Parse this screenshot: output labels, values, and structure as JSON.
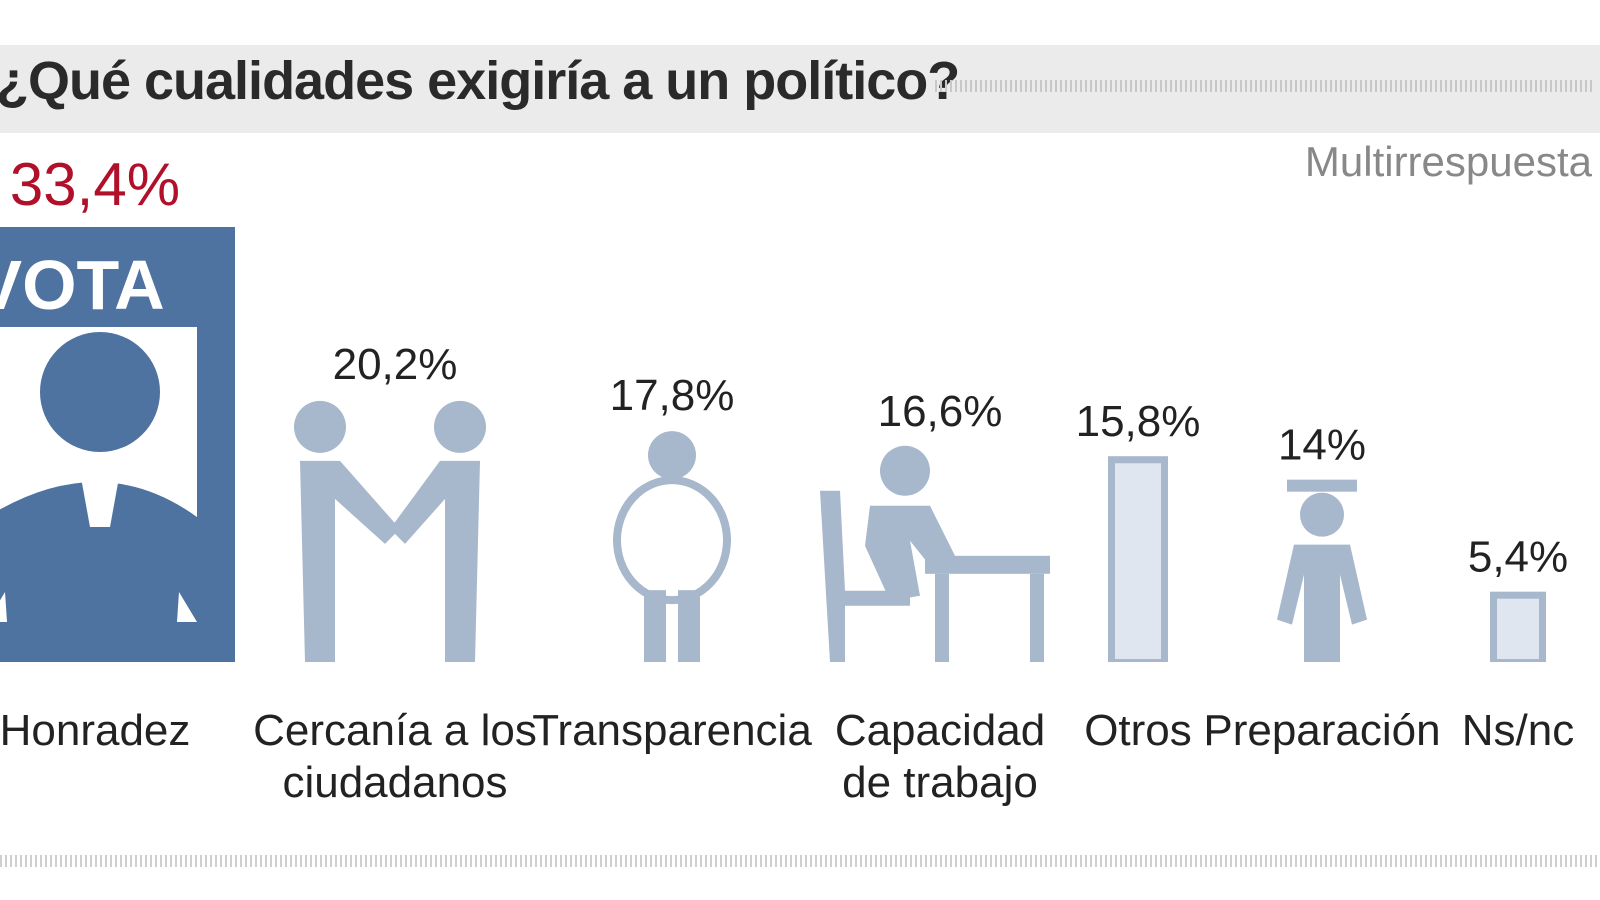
{
  "title": "¿Qué cualidades exigiría a un político?",
  "note": "Multirrespuesta",
  "ballot_text": "VOTA",
  "colors": {
    "highlight_bar": "#4f73a0",
    "icon_fill": "#a7b7cc",
    "highlight_value": "#b0102a"
  },
  "chart_data": {
    "type": "bar",
    "title": "¿Qué cualidades exigiría a un político?",
    "subtitle": "Multirrespuesta",
    "categories": [
      "Honradez",
      "Cercanía a los ciudadanos",
      "Transparencia",
      "Capacidad de trabajo",
      "Otros",
      "Preparación",
      "Ns/nc"
    ],
    "category_lines": [
      [
        "Honradez"
      ],
      [
        "Cercanía a los",
        "ciudadanos"
      ],
      [
        "Transparencia"
      ],
      [
        "Capacidad",
        "de trabajo"
      ],
      [
        "Otros"
      ],
      [
        "Preparación"
      ],
      [
        "Ns/nc"
      ]
    ],
    "values": [
      33.4,
      20.2,
      17.8,
      16.6,
      15.8,
      14,
      5.4
    ],
    "value_labels": [
      "33,4%",
      "20,2%",
      "17,8%",
      "16,6%",
      "15,8%",
      "14%",
      "5,4%"
    ],
    "icons": [
      "ballot-box-icon",
      "handshake-icon",
      "transparent-person-icon",
      "worker-at-desk-icon",
      "bar-icon",
      "graduate-icon",
      "bar-icon"
    ],
    "ylim": [
      0,
      33.4
    ],
    "grid": false,
    "legend": "none"
  }
}
